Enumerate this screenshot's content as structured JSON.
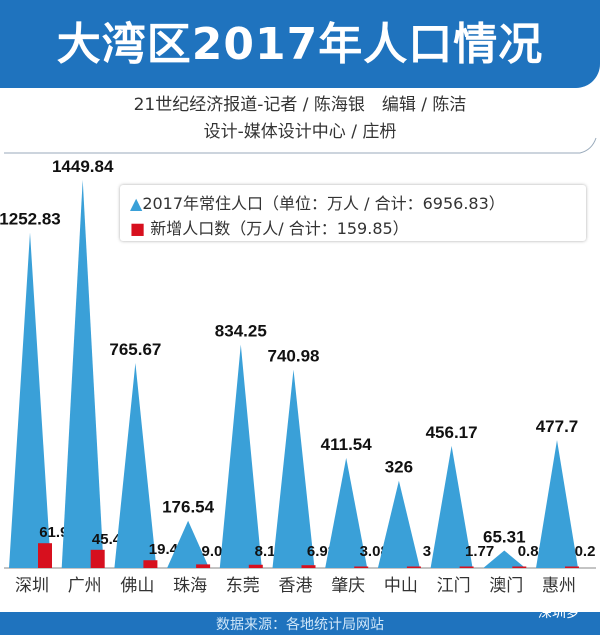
{
  "title": "大湾区2017年人口情况",
  "credits": [
    "21世纪经济报道-记者 / 陈海银　编辑 / 陈洁",
    "设计-媒体设计中心 / 庄枬"
  ],
  "footer": "数据来源：各地统计局网站",
  "watermark": "深圳梦",
  "colors": {
    "population": "#3aa0d8",
    "new": "#d7101e",
    "band": "#1f73be"
  },
  "chart_data": {
    "type": "bar",
    "categories": [
      "深圳",
      "广州",
      "佛山",
      "珠海",
      "东莞",
      "香港",
      "肇庆",
      "中山",
      "江门",
      "澳门",
      "惠州"
    ],
    "series": [
      {
        "name": "2017年常住人口（单位：万人 / 合计：6956.83）",
        "marker": "triangle",
        "values": [
          1252.83,
          1449.84,
          765.67,
          176.54,
          834.25,
          740.98,
          411.54,
          326,
          456.17,
          65.31,
          477.7
        ]
      },
      {
        "name": "新增人口数（万人/ 合计：159.85）",
        "marker": "square",
        "values": [
          61.99,
          45.49,
          19.4,
          9.01,
          8.11,
          6.98,
          3.08,
          3,
          1.77,
          0.82,
          0.2
        ]
      }
    ],
    "legend": "top-right"
  }
}
